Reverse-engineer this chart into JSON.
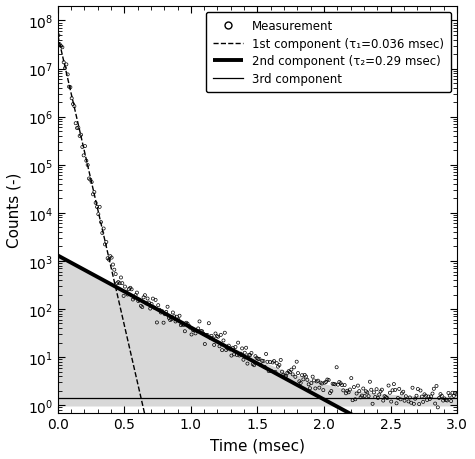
{
  "tau1": 0.036,
  "tau2": 0.29,
  "A1": 50000000.0,
  "A2": 1300,
  "A3": 1.4,
  "xmin": 0,
  "xmax": 3,
  "ymin": 0.7,
  "ymax": 200000000.0,
  "xlabel": "Time (msec)",
  "ylabel": "Counts (-)",
  "legend": [
    "Measurement",
    "1st component (τ₁=0.036 msec)",
    "2nd component (τ₂=0.29 msec)",
    "3rd component"
  ],
  "shade_color": "#d8d8d8",
  "seed": 42,
  "noise_scale": 0.25,
  "dt": 0.01
}
